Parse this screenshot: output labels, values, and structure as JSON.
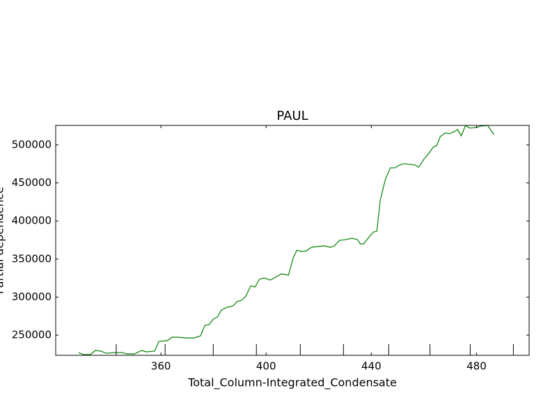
{
  "chart_data": {
    "type": "line",
    "title": "PAUL",
    "x_label": "Total_Column-Integrated_Condensate",
    "y_label": "Partial dependence",
    "xlim": [
      320,
      500
    ],
    "ylim": [
      223500,
      525600
    ],
    "xticks": [
      360,
      400,
      440,
      480
    ],
    "yticks": [
      250000,
      300000,
      350000,
      400000,
      450000,
      500000
    ],
    "grid": false,
    "deciles": [
      343.0,
      361.6,
      379.9,
      396.3,
      413.0,
      429.4,
      446.6,
      462.3,
      477.6,
      494.0
    ],
    "x": [
      328.7,
      330.6,
      333.2,
      335.1,
      337.2,
      339.1,
      342.5,
      345.2,
      347.0,
      349.9,
      352.8,
      354.4,
      357.6,
      359.2,
      362.4,
      364.2,
      366.4,
      369.3,
      372.5,
      375.1,
      376.7,
      378.3,
      379.9,
      381.5,
      383.0,
      385.2,
      387.5,
      388.9,
      390.7,
      392.3,
      394.2,
      395.8,
      397.4,
      399.2,
      401.6,
      404.0,
      405.8,
      408.5,
      410.3,
      411.7,
      413.5,
      415.4,
      417.2,
      419.1,
      422.3,
      424.4,
      426.0,
      427.8,
      430.2,
      432.6,
      434.7,
      435.8,
      437.1,
      439.2,
      440.8,
      442.1,
      443.4,
      445.3,
      447.2,
      449.0,
      450.6,
      452.5,
      454.6,
      456.7,
      458.0,
      460.1,
      461.7,
      463.6,
      464.9,
      466.2,
      468.1,
      469.7,
      471.5,
      472.8,
      474.2,
      475.8,
      477.4,
      480.0,
      481.6,
      484.2,
      486.6
    ],
    "series": [
      {
        "name": "Partial dependence",
        "color": "#008000",
        "values": [
          227100,
          224400,
          224400,
          229900,
          229000,
          226200,
          227100,
          227100,
          225300,
          225300,
          229900,
          228000,
          229000,
          241800,
          242700,
          247300,
          247300,
          246300,
          246300,
          249100,
          262800,
          263700,
          271100,
          273800,
          283000,
          286600,
          288500,
          294000,
          295800,
          301300,
          315000,
          313200,
          323300,
          325100,
          322400,
          326900,
          330600,
          328800,
          351600,
          361700,
          359900,
          360800,
          365400,
          366300,
          367200,
          365400,
          367200,
          374500,
          375500,
          377300,
          375500,
          370000,
          370000,
          379100,
          385500,
          386400,
          427700,
          454200,
          469800,
          469800,
          473400,
          475300,
          474400,
          473400,
          470700,
          481700,
          488100,
          497300,
          499100,
          511000,
          515600,
          514700,
          517400,
          520100,
          511900,
          525600,
          522000,
          522900,
          524700,
          525600,
          513700
        ]
      }
    ]
  }
}
